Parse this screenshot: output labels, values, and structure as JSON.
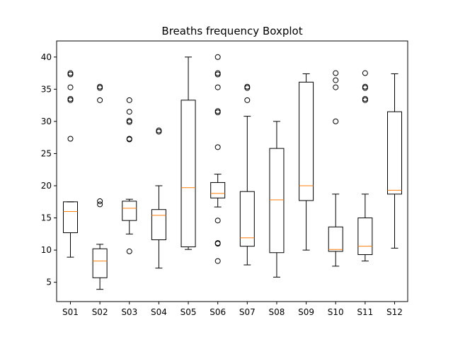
{
  "chart_data": {
    "type": "boxplot",
    "title": "Breaths frequency Boxplot",
    "xlabel": "",
    "ylabel": "",
    "ylim": [
      2,
      42.5
    ],
    "yticks": [
      5,
      10,
      15,
      20,
      25,
      30,
      35,
      40
    ],
    "categories": [
      "S01",
      "S02",
      "S03",
      "S04",
      "S05",
      "S06",
      "S07",
      "S08",
      "S09",
      "S10",
      "S11",
      "S12"
    ],
    "boxes": [
      {
        "whisker_low": 8.9,
        "q1": 12.7,
        "median": 16.0,
        "q3": 17.5,
        "whisker_high": 17.5,
        "outliers": [
          27.3,
          33.3,
          33.5,
          35.3,
          37.3,
          37.5
        ]
      },
      {
        "whisker_low": 3.9,
        "q1": 5.7,
        "median": 8.3,
        "q3": 10.2,
        "whisker_high": 10.9,
        "outliers": [
          17.1,
          17.6,
          33.3,
          35.2,
          35.4
        ]
      },
      {
        "whisker_low": 12.5,
        "q1": 14.6,
        "median": 16.5,
        "q3": 17.6,
        "whisker_high": 17.9,
        "outliers": [
          9.8,
          27.2,
          27.3,
          29.9,
          30.1,
          31.5,
          33.3
        ]
      },
      {
        "whisker_low": 7.2,
        "q1": 11.6,
        "median": 15.4,
        "q3": 16.3,
        "whisker_high": 20.0,
        "outliers": [
          28.4,
          28.6
        ]
      },
      {
        "whisker_low": 10.1,
        "q1": 10.5,
        "median": 19.7,
        "q3": 33.3,
        "whisker_high": 40.0,
        "outliers": []
      },
      {
        "whisker_low": 16.7,
        "q1": 18.1,
        "median": 18.8,
        "q3": 20.5,
        "whisker_high": 21.8,
        "outliers": [
          8.3,
          11.0,
          11.1,
          14.6,
          26.0,
          31.4,
          31.6,
          35.3,
          37.3,
          37.5,
          40.0
        ]
      },
      {
        "whisker_low": 7.7,
        "q1": 10.6,
        "median": 11.9,
        "q3": 19.1,
        "whisker_high": 30.8,
        "outliers": [
          33.3,
          35.2,
          35.4
        ]
      },
      {
        "whisker_low": 5.8,
        "q1": 9.6,
        "median": 17.8,
        "q3": 25.8,
        "whisker_high": 30.0,
        "outliers": []
      },
      {
        "whisker_low": 10.0,
        "q1": 17.7,
        "median": 20.0,
        "q3": 36.1,
        "whisker_high": 37.4,
        "outliers": []
      },
      {
        "whisker_low": 7.5,
        "q1": 9.8,
        "median": 10.1,
        "q3": 13.6,
        "whisker_high": 18.7,
        "outliers": [
          30.0,
          35.3,
          36.4,
          37.5
        ]
      },
      {
        "whisker_low": 8.3,
        "q1": 9.3,
        "median": 10.6,
        "q3": 15.0,
        "whisker_high": 18.7,
        "outliers": [
          33.3,
          33.5,
          35.2,
          35.4,
          37.5
        ]
      },
      {
        "whisker_low": 10.3,
        "q1": 18.7,
        "median": 19.3,
        "q3": 31.5,
        "whisker_high": 37.4,
        "outliers": []
      }
    ],
    "median_color": "#ff7f0e",
    "box_color": "#000000",
    "grid": false,
    "legend": "none"
  }
}
